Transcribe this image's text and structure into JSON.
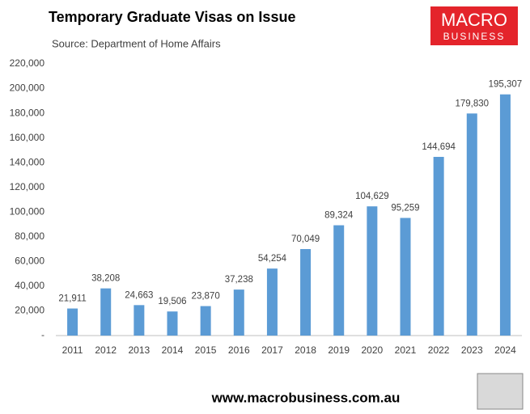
{
  "chart_data": {
    "type": "bar",
    "title": "Temporary Graduate Visas on Issue",
    "subtitle": "Source: Department of Home Affairs",
    "categories": [
      "2011",
      "2012",
      "2013",
      "2014",
      "2015",
      "2016",
      "2017",
      "2018",
      "2019",
      "2020",
      "2021",
      "2022",
      "2023",
      "2024"
    ],
    "values": [
      21911,
      38208,
      24663,
      19506,
      23870,
      37238,
      54254,
      70049,
      89324,
      104629,
      95259,
      144694,
      179830,
      195307
    ],
    "value_labels": [
      "21,911",
      "38,208",
      "24,663",
      "19,506",
      "23,870",
      "37,238",
      "54,254",
      "70,049",
      "89,324",
      "104,629",
      "95,259",
      "144,694",
      "179,830",
      "195,307"
    ],
    "color": "#5b9bd5",
    "ylim": [
      0,
      220000
    ],
    "yticks": [
      {
        "value": 0,
        "label": "-"
      },
      {
        "value": 20000,
        "label": "20,000"
      },
      {
        "value": 40000,
        "label": "40,000"
      },
      {
        "value": 60000,
        "label": "60,000"
      },
      {
        "value": 80000,
        "label": "80,000"
      },
      {
        "value": 100000,
        "label": "100,000"
      },
      {
        "value": 120000,
        "label": "120,000"
      },
      {
        "value": 140000,
        "label": "140,000"
      },
      {
        "value": 160000,
        "label": "160,000"
      },
      {
        "value": 180000,
        "label": "180,000"
      },
      {
        "value": 200000,
        "label": "200,000"
      },
      {
        "value": 220000,
        "label": "220,000"
      }
    ],
    "grid": false
  },
  "logo": {
    "line1": "MACRO",
    "line2": "BUSINESS"
  },
  "footer": "www.macrobusiness.com.au"
}
